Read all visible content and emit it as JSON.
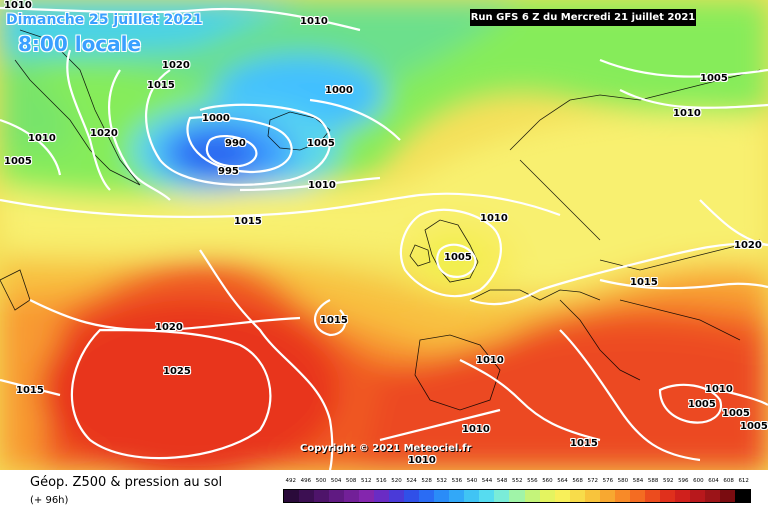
{
  "header": {
    "date": "Dimanche 25 juillet 2021",
    "time": "8:00 locale",
    "run": "Run GFS 6 Z du Mercredi 21 juillet 2021"
  },
  "copyright": "Copyright © 2021 Meteociel.fr",
  "footer": {
    "title": "Géop. Z500 & pression au sol",
    "subtitle": "(+ 96h)"
  },
  "isobar_labels": [
    "1010",
    "1020",
    "1015",
    "1000",
    "1010",
    "1020",
    "1005",
    "1000",
    "990",
    "1005",
    "995",
    "1010",
    "1005",
    "1010",
    "1015",
    "1010",
    "1020",
    "1005",
    "1015",
    "1020",
    "1015",
    "1025",
    "1015",
    "1010",
    "1010",
    "1015",
    "1010",
    "1010",
    "1005",
    "1005",
    "1005",
    "1010"
  ],
  "legend": {
    "labels": [
      "492",
      "496",
      "500",
      "504",
      "508",
      "512",
      "516",
      "520",
      "524",
      "528",
      "532",
      "536",
      "540",
      "544",
      "548",
      "552",
      "556",
      "560",
      "564",
      "568",
      "572",
      "576",
      "580",
      "584",
      "588",
      "592",
      "596",
      "600",
      "604",
      "608",
      "612"
    ],
    "colors": [
      "#2a0a3a",
      "#3c0f52",
      "#4e146a",
      "#601a82",
      "#722098",
      "#8426ae",
      "#6a2cc4",
      "#4a3ad8",
      "#3050e8",
      "#2a6cf4",
      "#2a8cf8",
      "#32a8f8",
      "#40c4f4",
      "#56dcf0",
      "#7aecd8",
      "#a0f4a8",
      "#c4f47a",
      "#e4f460",
      "#f8f05a",
      "#f8dc4a",
      "#f8c43c",
      "#f8a830",
      "#f88a28",
      "#f46c22",
      "#ec4c1e",
      "#e0301c",
      "#d0201c",
      "#b8181c",
      "#9c1418",
      "#7a0c10",
      "#000000"
    ]
  }
}
